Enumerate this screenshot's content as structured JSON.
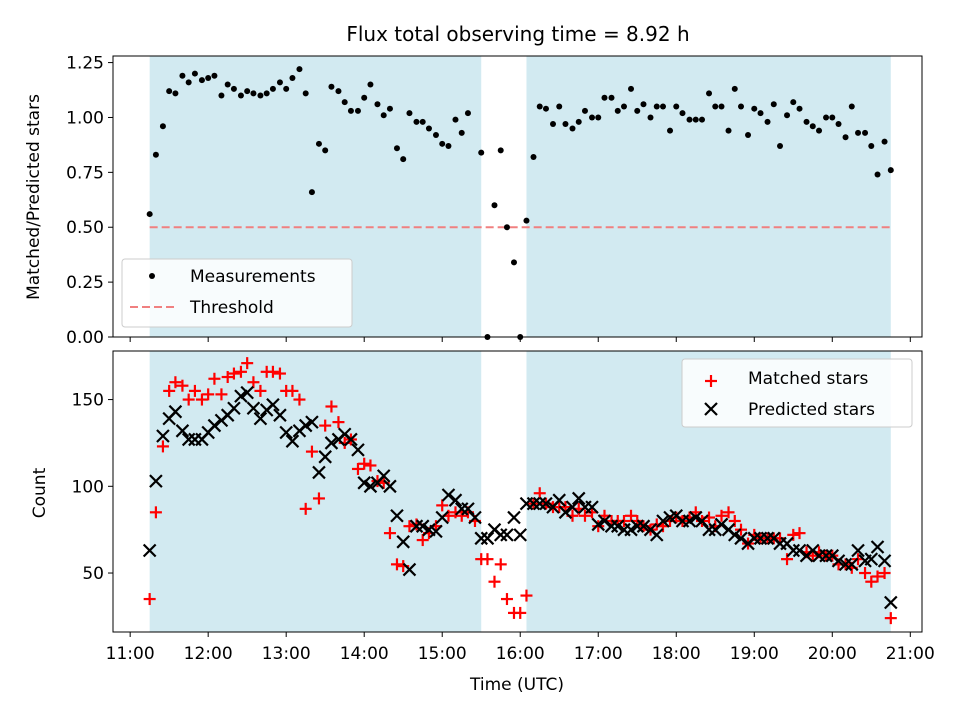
{
  "chart_data": {
    "type": "scatter",
    "title": "Flux total observing time = 8.92 h",
    "xlabel": "Time (UTC)",
    "x_ticks": [
      "11:00",
      "12:00",
      "13:00",
      "14:00",
      "15:00",
      "16:00",
      "17:00",
      "18:00",
      "19:00",
      "20:00",
      "21:00"
    ],
    "x_range_hours": [
      10.78,
      21.15
    ],
    "shaded_intervals_hours": [
      [
        11.25,
        15.5
      ],
      [
        16.08,
        20.75
      ]
    ],
    "colors": {
      "shade": "#add8e6",
      "measurement": "#000000",
      "threshold": "#f08080",
      "matched": "#ff0000",
      "predicted": "#000000"
    },
    "panels": [
      {
        "id": "ratio",
        "ylabel": "Matched/Predicted stars",
        "ylim": [
          0,
          1.28
        ],
        "yticks": [
          "0.00",
          "0.25",
          "0.50",
          "0.75",
          "1.00",
          "1.25"
        ],
        "threshold": 0.5,
        "legend": {
          "position": "lower-left",
          "entries": [
            "Measurements",
            "Threshold"
          ]
        },
        "series": [
          {
            "name": "Measurements",
            "x": [
              11.25,
              11.33,
              11.42,
              11.5,
              11.58,
              11.67,
              11.75,
              11.83,
              11.92,
              12.0,
              12.08,
              12.17,
              12.25,
              12.33,
              12.42,
              12.5,
              12.58,
              12.67,
              12.75,
              12.83,
              12.92,
              13.0,
              13.08,
              13.17,
              13.25,
              13.33,
              13.42,
              13.5,
              13.58,
              13.67,
              13.75,
              13.83,
              13.92,
              14.0,
              14.08,
              14.17,
              14.25,
              14.33,
              14.42,
              14.5,
              14.58,
              14.67,
              14.75,
              14.83,
              14.92,
              15.0,
              15.08,
              15.17,
              15.25,
              15.33,
              15.5,
              15.58,
              15.67,
              15.75,
              15.83,
              15.92,
              16.0,
              16.08,
              16.17,
              16.25,
              16.33,
              16.42,
              16.5,
              16.58,
              16.67,
              16.75,
              16.83,
              16.92,
              17.0,
              17.08,
              17.17,
              17.25,
              17.33,
              17.42,
              17.5,
              17.58,
              17.67,
              17.75,
              17.83,
              17.92,
              18.0,
              18.08,
              18.17,
              18.25,
              18.33,
              18.42,
              18.5,
              18.58,
              18.67,
              18.75,
              18.83,
              18.92,
              19.0,
              19.08,
              19.17,
              19.25,
              19.33,
              19.42,
              19.5,
              19.58,
              19.67,
              19.75,
              19.83,
              19.92,
              20.0,
              20.08,
              20.17,
              20.25,
              20.33,
              20.42,
              20.5,
              20.58,
              20.67,
              20.75
            ],
            "y": [
              0.56,
              0.83,
              0.96,
              1.12,
              1.11,
              1.19,
              1.16,
              1.2,
              1.17,
              1.18,
              1.19,
              1.1,
              1.15,
              1.13,
              1.1,
              1.12,
              1.11,
              1.1,
              1.11,
              1.13,
              1.16,
              1.13,
              1.18,
              1.22,
              1.11,
              0.66,
              0.88,
              0.85,
              1.14,
              1.12,
              1.07,
              1.03,
              1.03,
              1.09,
              1.15,
              1.06,
              1.01,
              1.04,
              0.86,
              0.81,
              1.02,
              0.98,
              0.98,
              0.95,
              0.92,
              0.88,
              0.87,
              0.99,
              0.93,
              1.02,
              0.84,
              0.0,
              0.6,
              0.85,
              0.5,
              0.34,
              0.0,
              0.53,
              0.82,
              1.05,
              1.04,
              0.97,
              1.05,
              0.97,
              0.95,
              0.98,
              1.03,
              1.0,
              1.0,
              1.09,
              1.09,
              1.03,
              1.05,
              1.13,
              1.03,
              1.06,
              1.0,
              1.05,
              1.05,
              0.94,
              1.05,
              1.02,
              0.99,
              0.99,
              0.99,
              1.11,
              1.05,
              1.05,
              0.94,
              1.13,
              1.05,
              0.92,
              1.04,
              1.02,
              0.98,
              1.06,
              0.87,
              1.01,
              1.07,
              1.04,
              0.98,
              0.96,
              0.94,
              1.0,
              1.0,
              0.97,
              0.91,
              1.05,
              0.93,
              0.93,
              0.87,
              0.74,
              0.89,
              0.76
            ]
          }
        ]
      },
      {
        "id": "counts",
        "ylabel": "Count",
        "ylim": [
          16,
          178
        ],
        "yticks": [
          "50",
          "100",
          "150"
        ],
        "legend": {
          "position": "upper-right",
          "entries": [
            "Matched stars",
            "Predicted stars"
          ]
        },
        "series": [
          {
            "name": "Matched stars",
            "marker": "+",
            "x": [
              11.25,
              11.33,
              11.42,
              11.5,
              11.58,
              11.67,
              11.75,
              11.83,
              11.92,
              12.0,
              12.08,
              12.17,
              12.25,
              12.33,
              12.42,
              12.5,
              12.58,
              12.67,
              12.75,
              12.83,
              12.92,
              13.0,
              13.08,
              13.17,
              13.25,
              13.33,
              13.42,
              13.5,
              13.58,
              13.67,
              13.75,
              13.83,
              13.92,
              14.0,
              14.08,
              14.17,
              14.25,
              14.33,
              14.42,
              14.5,
              14.58,
              14.67,
              14.75,
              14.83,
              14.92,
              15.0,
              15.08,
              15.17,
              15.25,
              15.33,
              15.42,
              15.5,
              15.58,
              15.67,
              15.75,
              15.83,
              15.92,
              16.0,
              16.08,
              16.17,
              16.25,
              16.33,
              16.42,
              16.5,
              16.58,
              16.67,
              16.75,
              16.83,
              16.92,
              17.0,
              17.08,
              17.17,
              17.25,
              17.33,
              17.42,
              17.5,
              17.58,
              17.67,
              17.75,
              17.83,
              17.92,
              18.0,
              18.08,
              18.17,
              18.25,
              18.33,
              18.42,
              18.5,
              18.58,
              18.67,
              18.75,
              18.83,
              18.92,
              19.0,
              19.08,
              19.17,
              19.25,
              19.33,
              19.42,
              19.5,
              19.58,
              19.67,
              19.75,
              19.83,
              19.92,
              20.0,
              20.08,
              20.17,
              20.25,
              20.33,
              20.42,
              20.5,
              20.58,
              20.67,
              20.75
            ],
            "y": [
              35,
              85,
              123,
              155,
              160,
              158,
              150,
              155,
              150,
              153,
              162,
              153,
              163,
              165,
              166,
              171,
              160,
              155,
              166,
              166,
              165,
              155,
              155,
              150,
              87,
              120,
              93,
              135,
              146,
              137,
              125,
              127,
              110,
              113,
              112,
              103,
              102,
              73,
              55,
              54,
              77,
              78,
              69,
              73,
              77,
              89,
              83,
              85,
              83,
              85,
              80,
              58,
              58,
              45,
              55,
              35,
              27,
              27,
              37,
              90,
              96,
              90,
              88,
              88,
              88,
              83,
              87,
              83,
              85,
              77,
              83,
              80,
              80,
              80,
              83,
              80,
              77,
              75,
              78,
              77,
              80,
              82,
              80,
              82,
              85,
              80,
              82,
              77,
              83,
              85,
              80,
              75,
              67,
              72,
              70,
              70,
              70,
              70,
              58,
              72,
              73,
              62,
              60,
              62,
              60,
              60,
              55,
              55,
              53,
              58,
              50,
              45,
              48,
              50,
              24
            ]
          },
          {
            "name": "Predicted stars",
            "marker": "x",
            "x": [
              11.25,
              11.33,
              11.42,
              11.5,
              11.58,
              11.67,
              11.75,
              11.83,
              11.92,
              12.0,
              12.08,
              12.17,
              12.25,
              12.33,
              12.42,
              12.5,
              12.58,
              12.67,
              12.75,
              12.83,
              12.92,
              13.0,
              13.08,
              13.17,
              13.25,
              13.33,
              13.42,
              13.5,
              13.58,
              13.67,
              13.75,
              13.83,
              13.92,
              14.0,
              14.08,
              14.17,
              14.25,
              14.33,
              14.42,
              14.5,
              14.58,
              14.67,
              14.75,
              14.83,
              14.92,
              15.0,
              15.08,
              15.17,
              15.25,
              15.33,
              15.42,
              15.5,
              15.58,
              15.67,
              15.75,
              15.83,
              15.92,
              16.0,
              16.08,
              16.17,
              16.25,
              16.33,
              16.42,
              16.5,
              16.58,
              16.67,
              16.75,
              16.83,
              16.92,
              17.0,
              17.08,
              17.17,
              17.25,
              17.33,
              17.42,
              17.5,
              17.58,
              17.67,
              17.75,
              17.83,
              17.92,
              18.0,
              18.08,
              18.17,
              18.25,
              18.33,
              18.42,
              18.5,
              18.58,
              18.67,
              18.75,
              18.83,
              18.92,
              19.0,
              19.08,
              19.17,
              19.25,
              19.33,
              19.42,
              19.5,
              19.58,
              19.67,
              19.75,
              19.83,
              19.92,
              20.0,
              20.08,
              20.17,
              20.25,
              20.33,
              20.42,
              20.5,
              20.58,
              20.67,
              20.75
            ],
            "y": [
              63,
              103,
              129,
              139,
              143,
              132,
              127,
              127,
              127,
              131,
              135,
              138,
              141,
              145,
              152,
              154,
              145,
              139,
              144,
              147,
              141,
              131,
              126,
              132,
              135,
              137,
              108,
              117,
              125,
              127,
              130,
              127,
              121,
              102,
              100,
              102,
              106,
              100,
              83,
              68,
              52,
              77,
              77,
              75,
              74,
              82,
              95,
              92,
              87,
              87,
              82,
              70,
              70,
              75,
              72,
              72,
              82,
              72,
              90,
              90,
              90,
              90,
              88,
              92,
              85,
              88,
              93,
              88,
              88,
              78,
              80,
              77,
              77,
              75,
              75,
              77,
              77,
              75,
              72,
              80,
              82,
              83,
              80,
              80,
              82,
              80,
              75,
              75,
              78,
              75,
              72,
              70,
              67,
              70,
              70,
              70,
              70,
              67,
              67,
              63,
              63,
              60,
              63,
              60,
              60,
              60,
              57,
              55,
              55,
              63,
              57,
              58,
              65,
              57,
              33
            ]
          }
        ]
      }
    ]
  }
}
